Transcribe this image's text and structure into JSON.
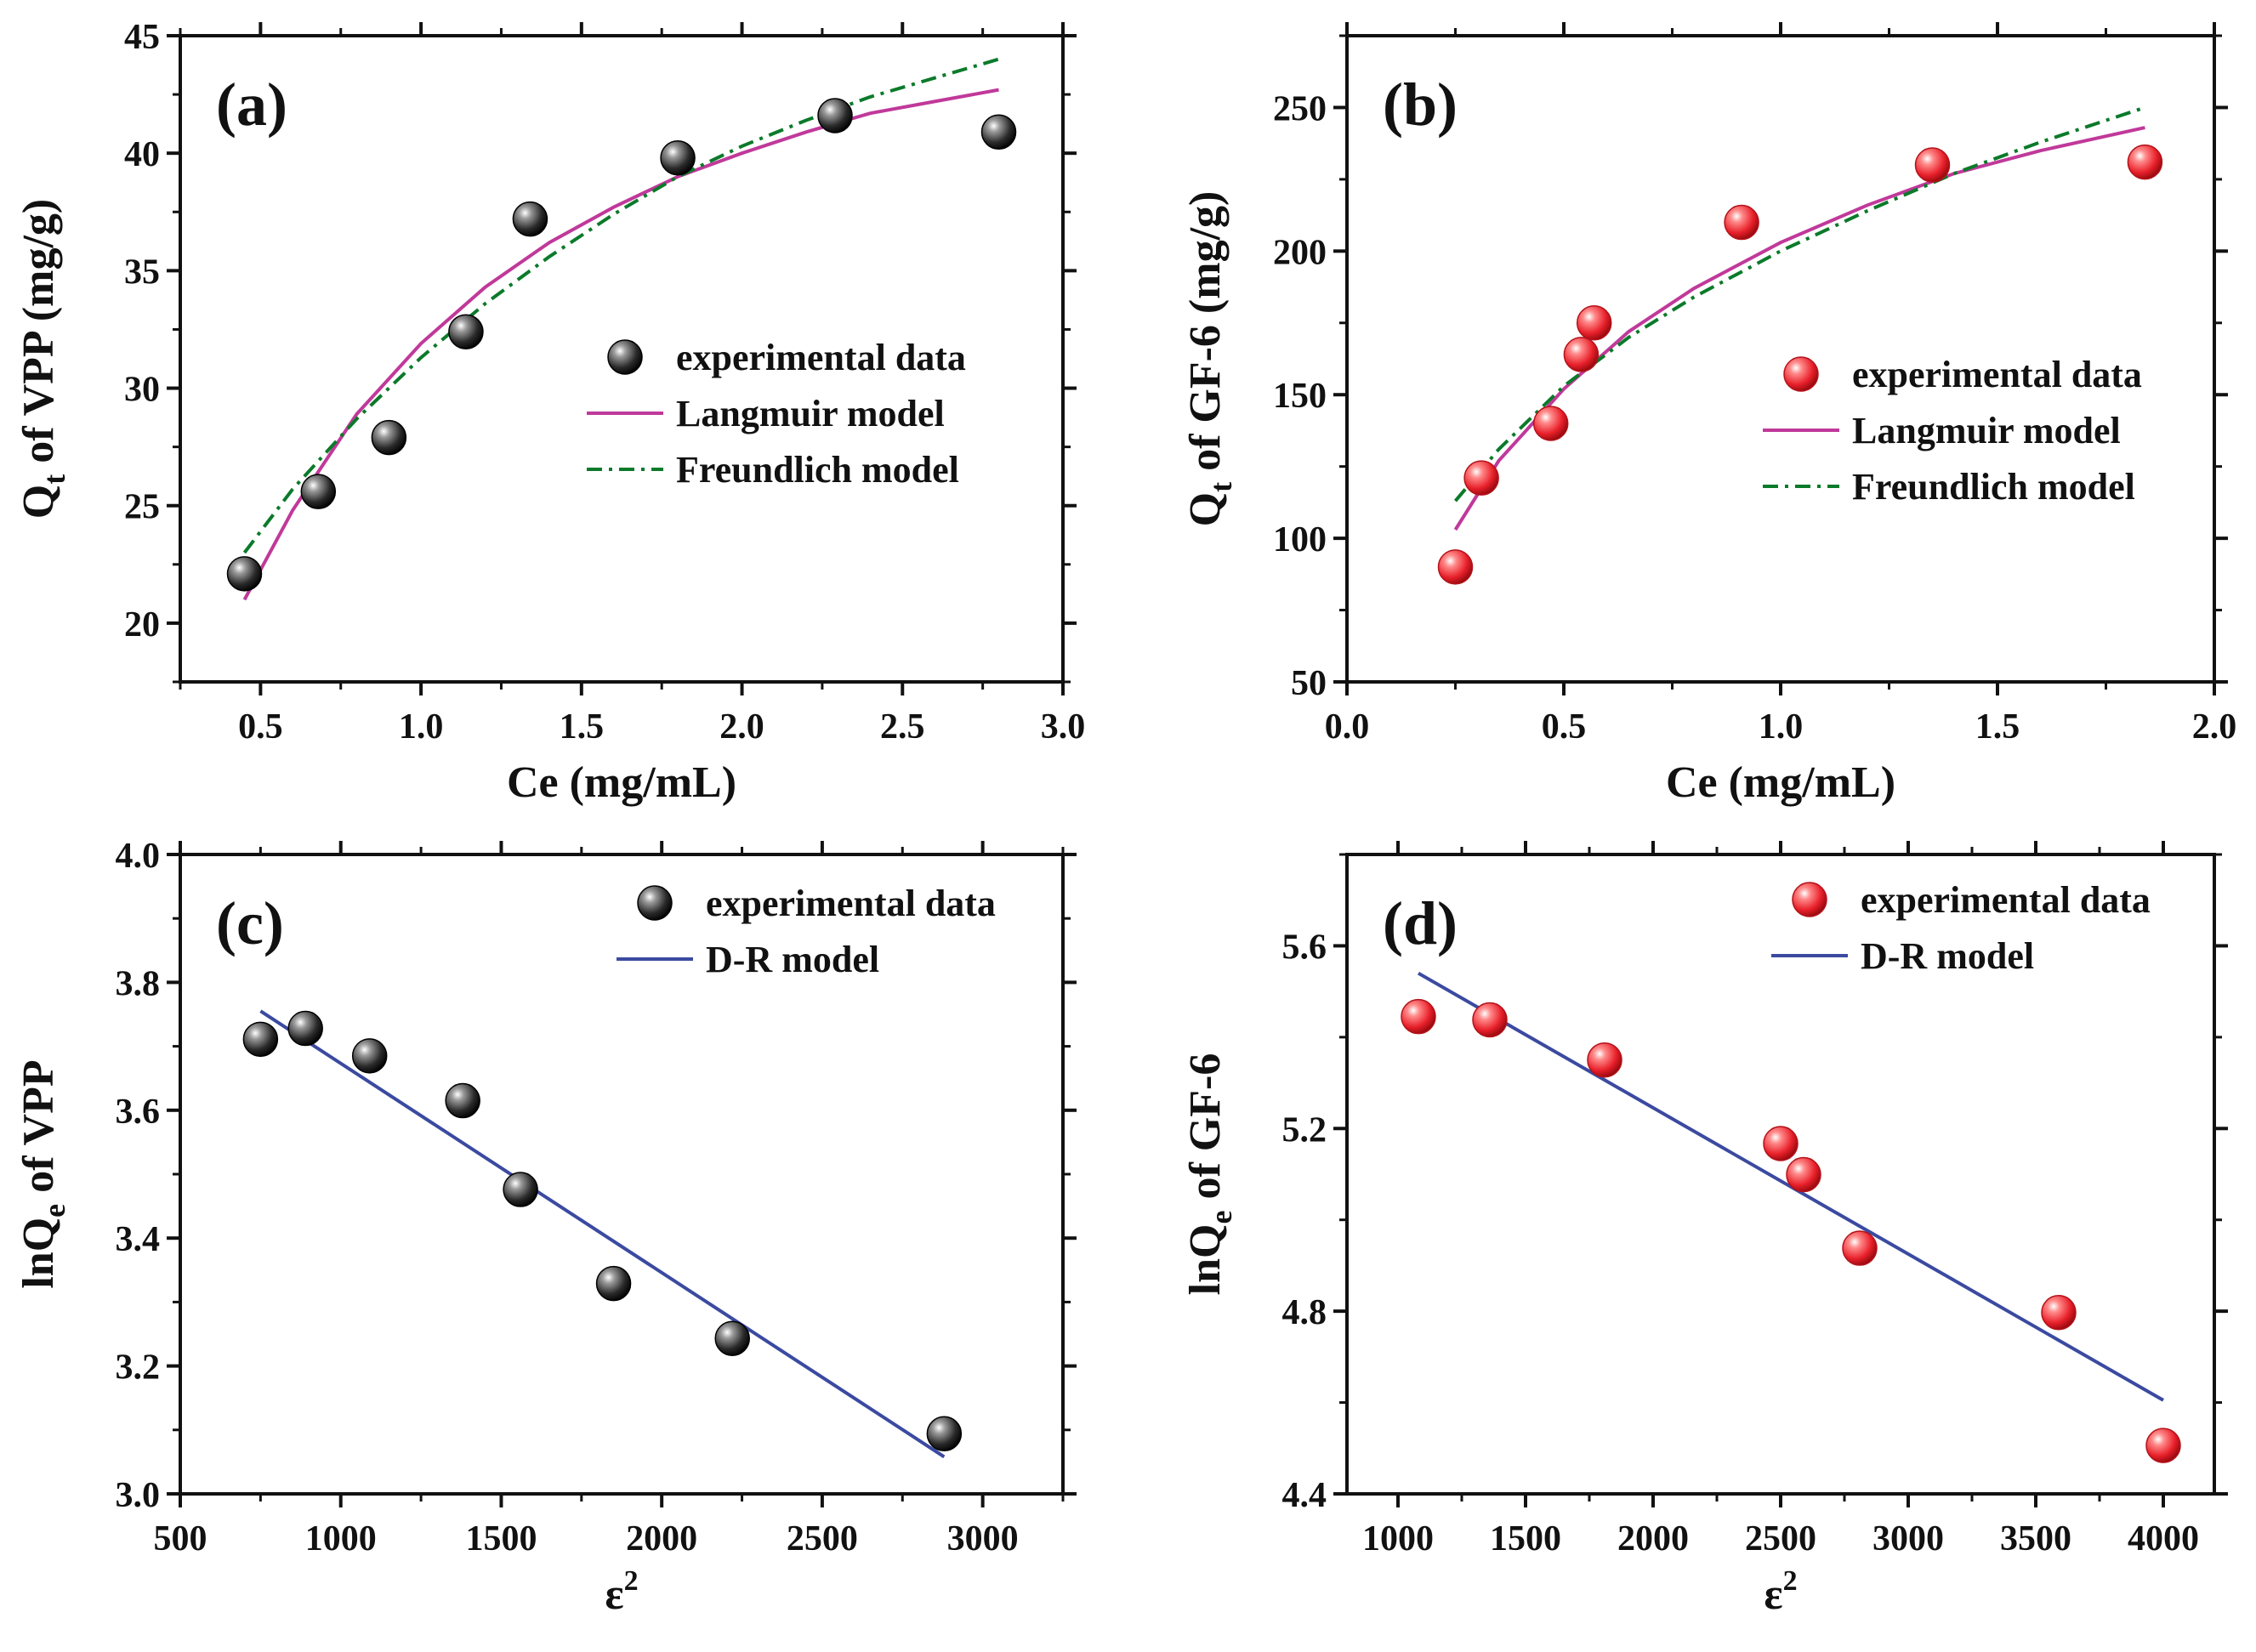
{
  "figure": {
    "panels": [
      {
        "label": "(a)",
        "ylabel": {
          "main": "Q",
          "sub": "t",
          "rest": " of VPP (mg/g)"
        },
        "xlabel": {
          "main": "Ce (mg/mL)",
          "sup": ""
        }
      },
      {
        "label": "(b)",
        "ylabel": {
          "main": "Q",
          "sub": "t",
          "rest": " of GF-6 (mg/g)"
        },
        "xlabel": {
          "main": "Ce (mg/mL)",
          "sup": ""
        }
      },
      {
        "label": "(c)",
        "ylabel": {
          "main": "lnQ",
          "sub": "e",
          "rest": " of VPP"
        },
        "xlabel": {
          "main": "ε",
          "sup": "2"
        }
      },
      {
        "label": "(d)",
        "ylabel": {
          "main": "lnQ",
          "sub": "e",
          "rest": " of GF-6"
        },
        "xlabel": {
          "main": "ε",
          "sup": "2"
        }
      }
    ]
  },
  "colors": {
    "black_marker": "#222222",
    "red_marker": "#e8202a",
    "langmuir": "#c0399a",
    "freundlich": "#0b7a2a",
    "dr": "#3b4aa0",
    "axis": "#111111"
  },
  "chart_data": [
    {
      "type": "scatter",
      "panel": "(a)",
      "xlabel": "Ce (mg/mL)",
      "ylabel": "Qt of VPP (mg/g)",
      "xlim": [
        0.25,
        3.0
      ],
      "ylim": [
        17.5,
        45
      ],
      "xticks": [
        "0.5",
        "1.0",
        "1.5",
        "2.0",
        "2.5",
        "3.0"
      ],
      "yticks": [
        "20",
        "25",
        "30",
        "35",
        "40",
        "45"
      ],
      "legend_position": "center-right",
      "series": [
        {
          "name": "experimental data",
          "kind": "points",
          "color": "black",
          "x": [
            0.45,
            0.68,
            0.9,
            1.14,
            1.34,
            1.8,
            2.29,
            2.8
          ],
          "y": [
            22.1,
            25.6,
            27.9,
            32.4,
            37.2,
            39.8,
            41.6,
            40.9
          ]
        },
        {
          "name": "Langmuir model",
          "kind": "line",
          "style": "solid",
          "color": "langmuir",
          "x": [
            0.45,
            0.6,
            0.8,
            1.0,
            1.2,
            1.4,
            1.6,
            1.8,
            2.0,
            2.2,
            2.4,
            2.6,
            2.8
          ],
          "y": [
            21.0,
            24.8,
            28.9,
            31.9,
            34.3,
            36.2,
            37.7,
            39.0,
            40.0,
            40.9,
            41.7,
            42.2,
            42.7
          ]
        },
        {
          "name": "Freundlich model",
          "kind": "line",
          "style": "dashdot",
          "color": "freundlich",
          "x": [
            0.45,
            0.6,
            0.8,
            1.0,
            1.2,
            1.4,
            1.6,
            1.8,
            2.0,
            2.2,
            2.4,
            2.6,
            2.8
          ],
          "y": [
            23.0,
            25.7,
            28.7,
            31.3,
            33.6,
            35.6,
            37.4,
            39.0,
            40.3,
            41.4,
            42.4,
            43.2,
            44.0
          ]
        }
      ]
    },
    {
      "type": "scatter",
      "panel": "(b)",
      "xlabel": "Ce (mg/mL)",
      "ylabel": "Qt of GF-6 (mg/g)",
      "xlim": [
        0.0,
        2.0
      ],
      "ylim": [
        50,
        275
      ],
      "xticks": [
        "0.0",
        "0.5",
        "1.0",
        "1.5",
        "2.0"
      ],
      "yticks": [
        "50",
        "100",
        "150",
        "200",
        "250"
      ],
      "legend_position": "center-right",
      "series": [
        {
          "name": "experimental data",
          "kind": "points",
          "color": "red",
          "x": [
            0.25,
            0.31,
            0.47,
            0.54,
            0.57,
            0.91,
            1.35,
            1.84
          ],
          "y": [
            90,
            121,
            140,
            164,
            175,
            210,
            230,
            231
          ]
        },
        {
          "name": "Langmuir model",
          "kind": "line",
          "style": "solid",
          "color": "langmuir",
          "x": [
            0.25,
            0.35,
            0.5,
            0.65,
            0.8,
            1.0,
            1.2,
            1.4,
            1.6,
            1.84
          ],
          "y": [
            103,
            127,
            152,
            172,
            187,
            203,
            216,
            227,
            235,
            243
          ]
        },
        {
          "name": "Freundlich model",
          "kind": "line",
          "style": "dashdot",
          "color": "freundlich",
          "x": [
            0.25,
            0.35,
            0.5,
            0.65,
            0.8,
            1.0,
            1.2,
            1.4,
            1.6,
            1.84
          ],
          "y": [
            113,
            131,
            153,
            170,
            184,
            200,
            214,
            227,
            238,
            250
          ]
        }
      ]
    },
    {
      "type": "scatter",
      "panel": "(c)",
      "xlabel": "ε²",
      "ylabel": "lnQe of VPP",
      "xlim": [
        500,
        3250
      ],
      "ylim": [
        3.0,
        4.0
      ],
      "xticks": [
        "500",
        "1000",
        "1500",
        "2000",
        "2500",
        "3000"
      ],
      "yticks": [
        "3.0",
        "3.2",
        "3.4",
        "3.6",
        "3.8",
        "4.0"
      ],
      "legend_position": "top-right",
      "series": [
        {
          "name": "experimental data",
          "kind": "points",
          "color": "black",
          "x": [
            750,
            890,
            1090,
            1380,
            1560,
            1850,
            2220,
            2880
          ],
          "y": [
            3.711,
            3.728,
            3.685,
            3.615,
            3.476,
            3.329,
            3.243,
            3.094
          ]
        },
        {
          "name": "D-R model",
          "kind": "line",
          "style": "solid",
          "color": "dr",
          "x": [
            750,
            2880
          ],
          "y": [
            3.755,
            3.058
          ]
        }
      ]
    },
    {
      "type": "scatter",
      "panel": "(d)",
      "xlabel": "ε²",
      "ylabel": "lnQe of GF-6",
      "xlim": [
        800,
        4200
      ],
      "ylim": [
        4.4,
        5.8
      ],
      "xticks": [
        "1000",
        "1500",
        "2000",
        "2500",
        "3000",
        "3500",
        "4000"
      ],
      "yticks": [
        "4.4",
        "4.8",
        "5.2",
        "5.6"
      ],
      "legend_position": "top-right",
      "series": [
        {
          "name": "experimental data",
          "kind": "points",
          "color": "red",
          "x": [
            1080,
            1360,
            1810,
            2500,
            2590,
            2810,
            3590,
            4000
          ],
          "y": [
            5.445,
            5.438,
            5.35,
            5.167,
            5.099,
            4.938,
            4.797,
            4.506
          ]
        },
        {
          "name": "D-R model",
          "kind": "line",
          "style": "solid",
          "color": "dr",
          "x": [
            1080,
            4000
          ],
          "y": [
            5.54,
            4.605
          ]
        }
      ]
    }
  ]
}
